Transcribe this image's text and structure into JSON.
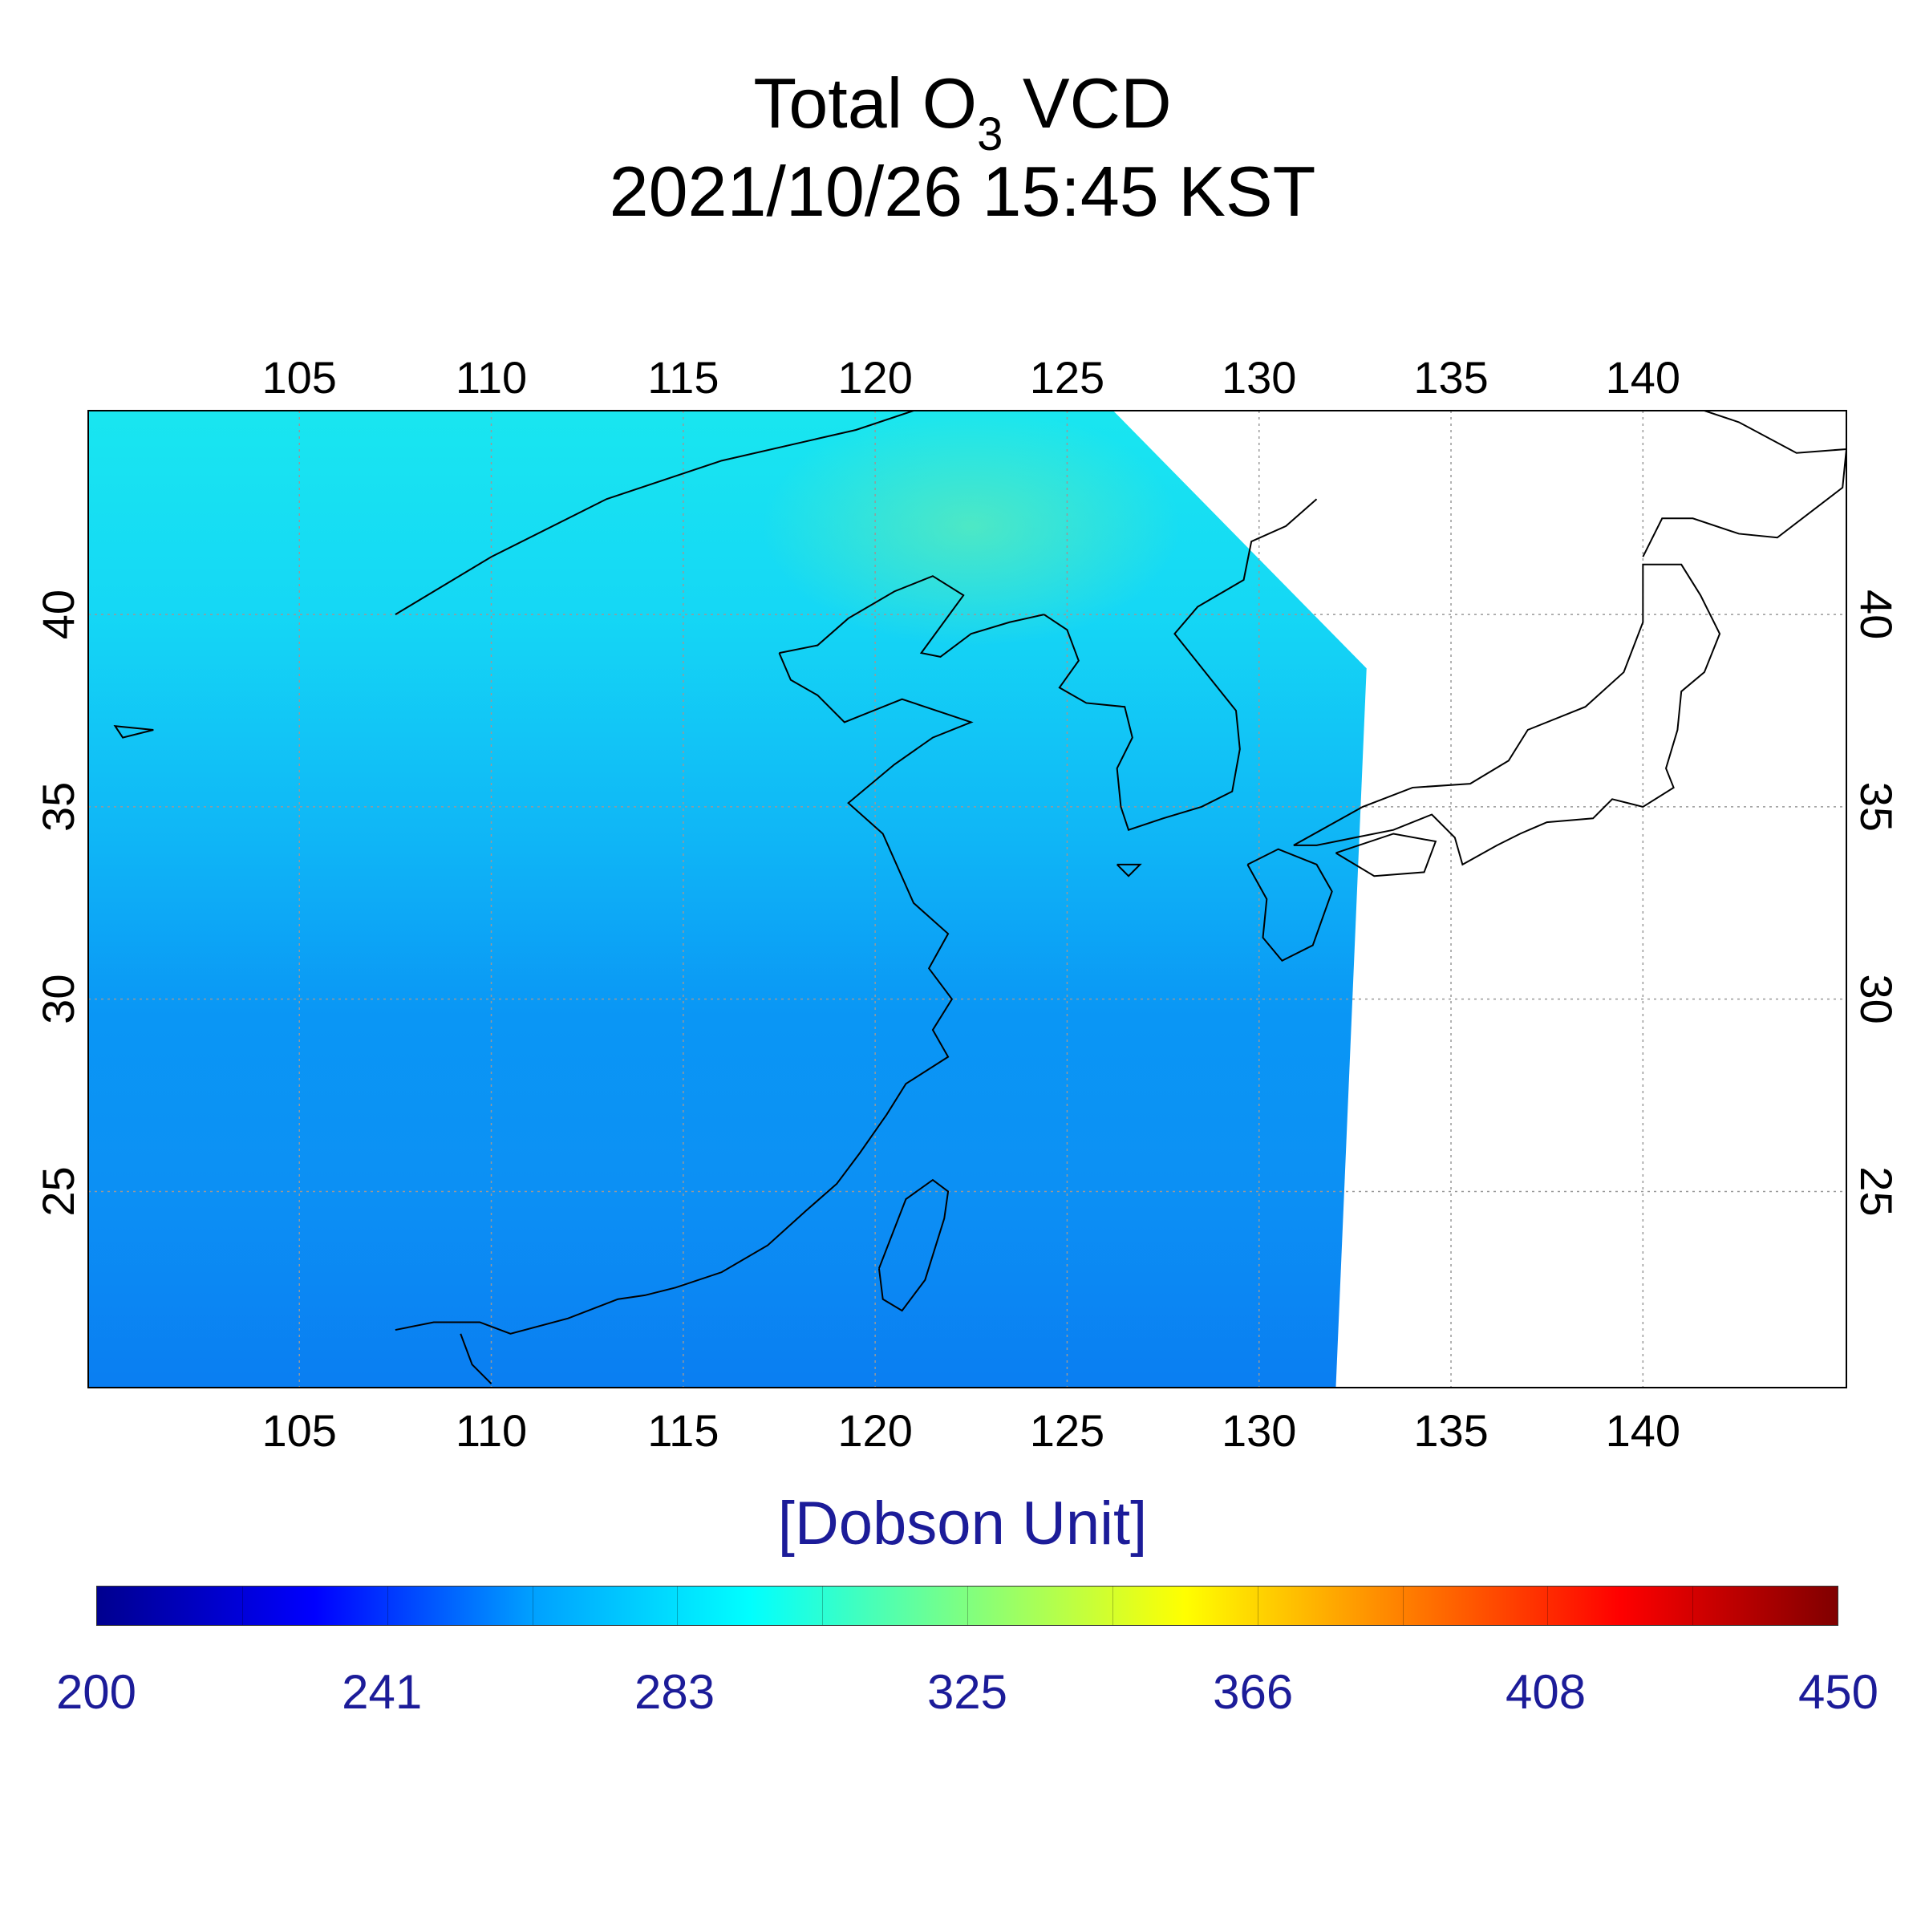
{
  "title": {
    "line1_main": "Total O",
    "line1_sub": "3",
    "line1_tail": " VCD",
    "line2": "2021/10/26 15:45 KST"
  },
  "chart_data": {
    "type": "heatmap",
    "xlim": [
      99.5,
      145.3
    ],
    "ylim": [
      19.9,
      45.3
    ],
    "x_ticks": [
      "105",
      "110",
      "115",
      "120",
      "125",
      "130",
      "135",
      "140"
    ],
    "x_tick_values": [
      105,
      110,
      115,
      120,
      125,
      130,
      135,
      140
    ],
    "y_ticks": [
      "25",
      "30",
      "35",
      "40"
    ],
    "y_tick_values": [
      25,
      30,
      35,
      40
    ],
    "grid": true,
    "data_extent_corners": [
      [
        99.5,
        45.3
      ],
      [
        126.2,
        45.3
      ],
      [
        132.8,
        38.6
      ],
      [
        132.0,
        19.9
      ],
      [
        99.5,
        19.9
      ]
    ],
    "colorbar": {
      "label": "[Dobson Unit]",
      "min": 200,
      "max": 450,
      "tick_labels": [
        "200",
        "241",
        "283",
        "325",
        "366",
        "408",
        "450"
      ],
      "tick_values": [
        200,
        241,
        283,
        325,
        366,
        408,
        450
      ],
      "colormap": [
        "#00008f",
        "#0000ff",
        "#00a0ff",
        "#00ffff",
        "#80ff80",
        "#ffff00",
        "#ff8000",
        "#ff0000",
        "#800000"
      ]
    }
  }
}
